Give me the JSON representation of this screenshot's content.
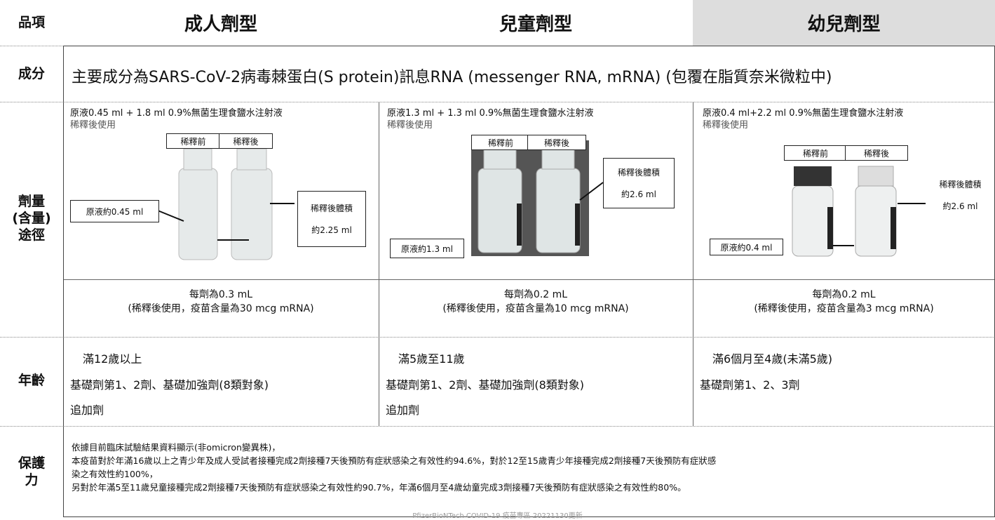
{
  "table": {
    "header": [
      "品項",
      "成人劑型",
      "兒童劑型",
      "幼兒劑型"
    ],
    "ingredient": {
      "label": "成分",
      "text": "主要成分為SARS-CoV-2病毒棘蛋白(S protein)訊息RNA (messenger RNA, mRNA) (包覆在脂質奈米微粒中)"
    },
    "dosage": {
      "label": [
        "劑量",
        "(含量)",
        "途徑"
      ],
      "columns": [
        {
          "prep": [
            "原液0.45 ml + 1.8 ml 0.9%無菌生理食鹽水注射液",
            "稀釋後使用"
          ],
          "before": "稀釋前",
          "after": "稀釋後",
          "stock": "原液約0.45 ml",
          "diluted": [
            "稀釋後體積",
            "約2.25 ml"
          ],
          "dose": [
            "每劑為0.3 mL",
            "(稀釋後使用，疫苗含量為30 mcg mRNA)"
          ]
        },
        {
          "prep": [
            "原液1.3 ml + 1.3 ml 0.9%無菌生理食鹽水注射液",
            "稀釋後使用"
          ],
          "before": "稀釋前",
          "after": "稀釋後",
          "stock": "原液約1.3 ml",
          "diluted": [
            "稀釋後體積",
            "約2.6 ml"
          ],
          "dose": [
            "每劑為0.2 mL",
            "(稀釋後使用，疫苗含量為10 mcg mRNA)"
          ]
        },
        {
          "prep": [
            "原液0.4 ml+2.2 ml 0.9%無菌生理食鹽水注射液",
            "稀釋後使用"
          ],
          "before": "稀釋前",
          "after": "稀釋後",
          "stock": "原液約0.4 ml",
          "diluted": [
            "稀釋後體積",
            "約2.6 ml"
          ],
          "dose": [
            "每劑為0.2 mL",
            "(稀釋後使用，疫苗含量為3 mcg mRNA)"
          ]
        }
      ]
    },
    "age": {
      "label": "年齡",
      "columns": [
        {
          "title": "滿12歲以上",
          "items": [
            "基礎劑第1、2劑、基礎加強劑(8類對象)",
            "追加劑"
          ]
        },
        {
          "title": "滿5歲至11歲",
          "items": [
            "基礎劑第1、2劑、基礎加強劑(8類對象)",
            "追加劑"
          ]
        },
        {
          "title": "滿6個月至4歲(未滿5歲)",
          "items": [
            "基礎劑第1、2、3劑"
          ]
        }
      ]
    },
    "protection": {
      "label": [
        "保護",
        "力"
      ],
      "lines": [
        "依據目前臨床試驗結果資料顯示(非omicron變異株)，",
        "本疫苗對於年滿16歲以上之青少年及成人受試者接種完成2劑接種7天後預防有症狀感染之有效性約94.6%，對於12至15歲青少年接種完成2劑接種7天後預防有症狀感",
        "染之有效性約100%，",
        "另對於年滿5至11歲兒童接種完成2劑接種7天後預防有症狀感染之有效性約90.7%，年滿6個月至4歲幼童完成3劑接種7天後預防有症狀感染之有效性約80%。"
      ]
    },
    "footer": "PfizerBioNTech COVID-19 疫苗專區 20221130更新"
  }
}
